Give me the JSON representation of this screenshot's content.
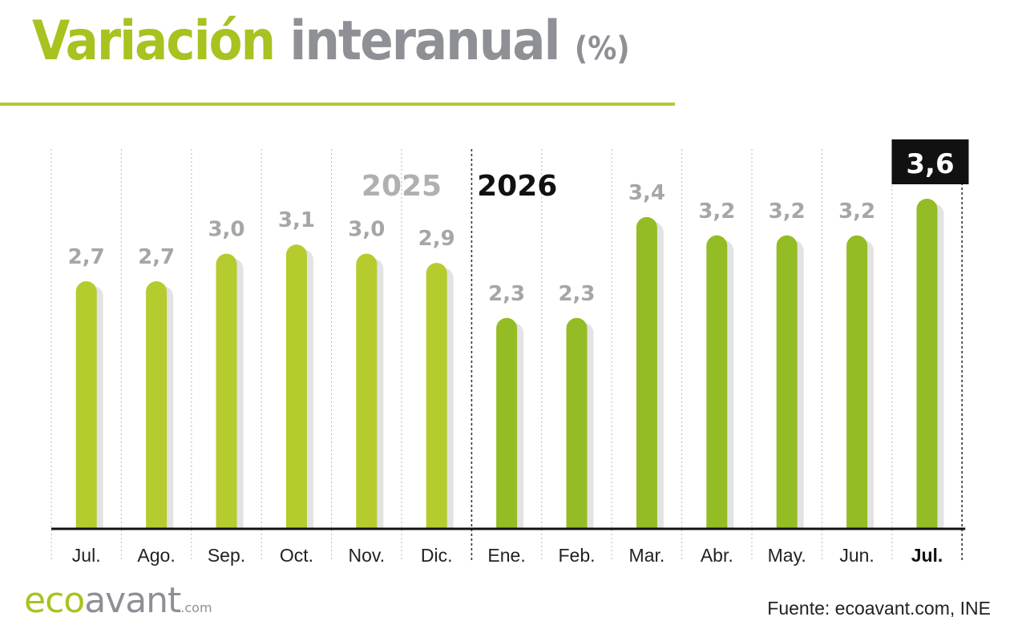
{
  "title": {
    "part1": "Variación",
    "part2": "interanual",
    "part3": "(%)"
  },
  "brand": {
    "eco": "eco",
    "avant": "avant",
    "tld": ".com"
  },
  "source": "Fuente: ecoavant.com, INE",
  "colors": {
    "bar_2025": "#b5cb2e",
    "bar_2026": "#94bc24",
    "shadow": "#e3e3e3",
    "label": "#a6a6a6",
    "highlight_box": "#111111",
    "title_green": "#a8c220",
    "title_gray": "#8e9096"
  },
  "chart_data": {
    "type": "bar",
    "title": "Variación interanual (%)",
    "xlabel": "",
    "ylabel": "",
    "ylim": [
      0,
      3.6
    ],
    "grid": "vertical dotted separators",
    "year_labels": [
      {
        "text": "2025",
        "group": 0
      },
      {
        "text": "2026",
        "group": 1
      }
    ],
    "categories": [
      "Jul.",
      "Ago.",
      "Sep.",
      "Oct.",
      "Nov.",
      "Dic.",
      "Ene.",
      "Feb.",
      "Mar.",
      "Abr.",
      "May.",
      "Jun.",
      "Jul."
    ],
    "groups": [
      0,
      0,
      0,
      0,
      0,
      0,
      1,
      1,
      1,
      1,
      1,
      1,
      1
    ],
    "values": [
      2.7,
      2.7,
      3.0,
      3.1,
      3.0,
      2.9,
      2.3,
      2.3,
      3.4,
      3.2,
      3.2,
      3.2,
      3.6
    ],
    "value_labels": [
      "2,7",
      "2,7",
      "3,0",
      "3,1",
      "3,0",
      "2,9",
      "2,3",
      "2,3",
      "3,4",
      "3,2",
      "3,2",
      "3,2",
      "3,6"
    ],
    "highlight_index": 12
  }
}
